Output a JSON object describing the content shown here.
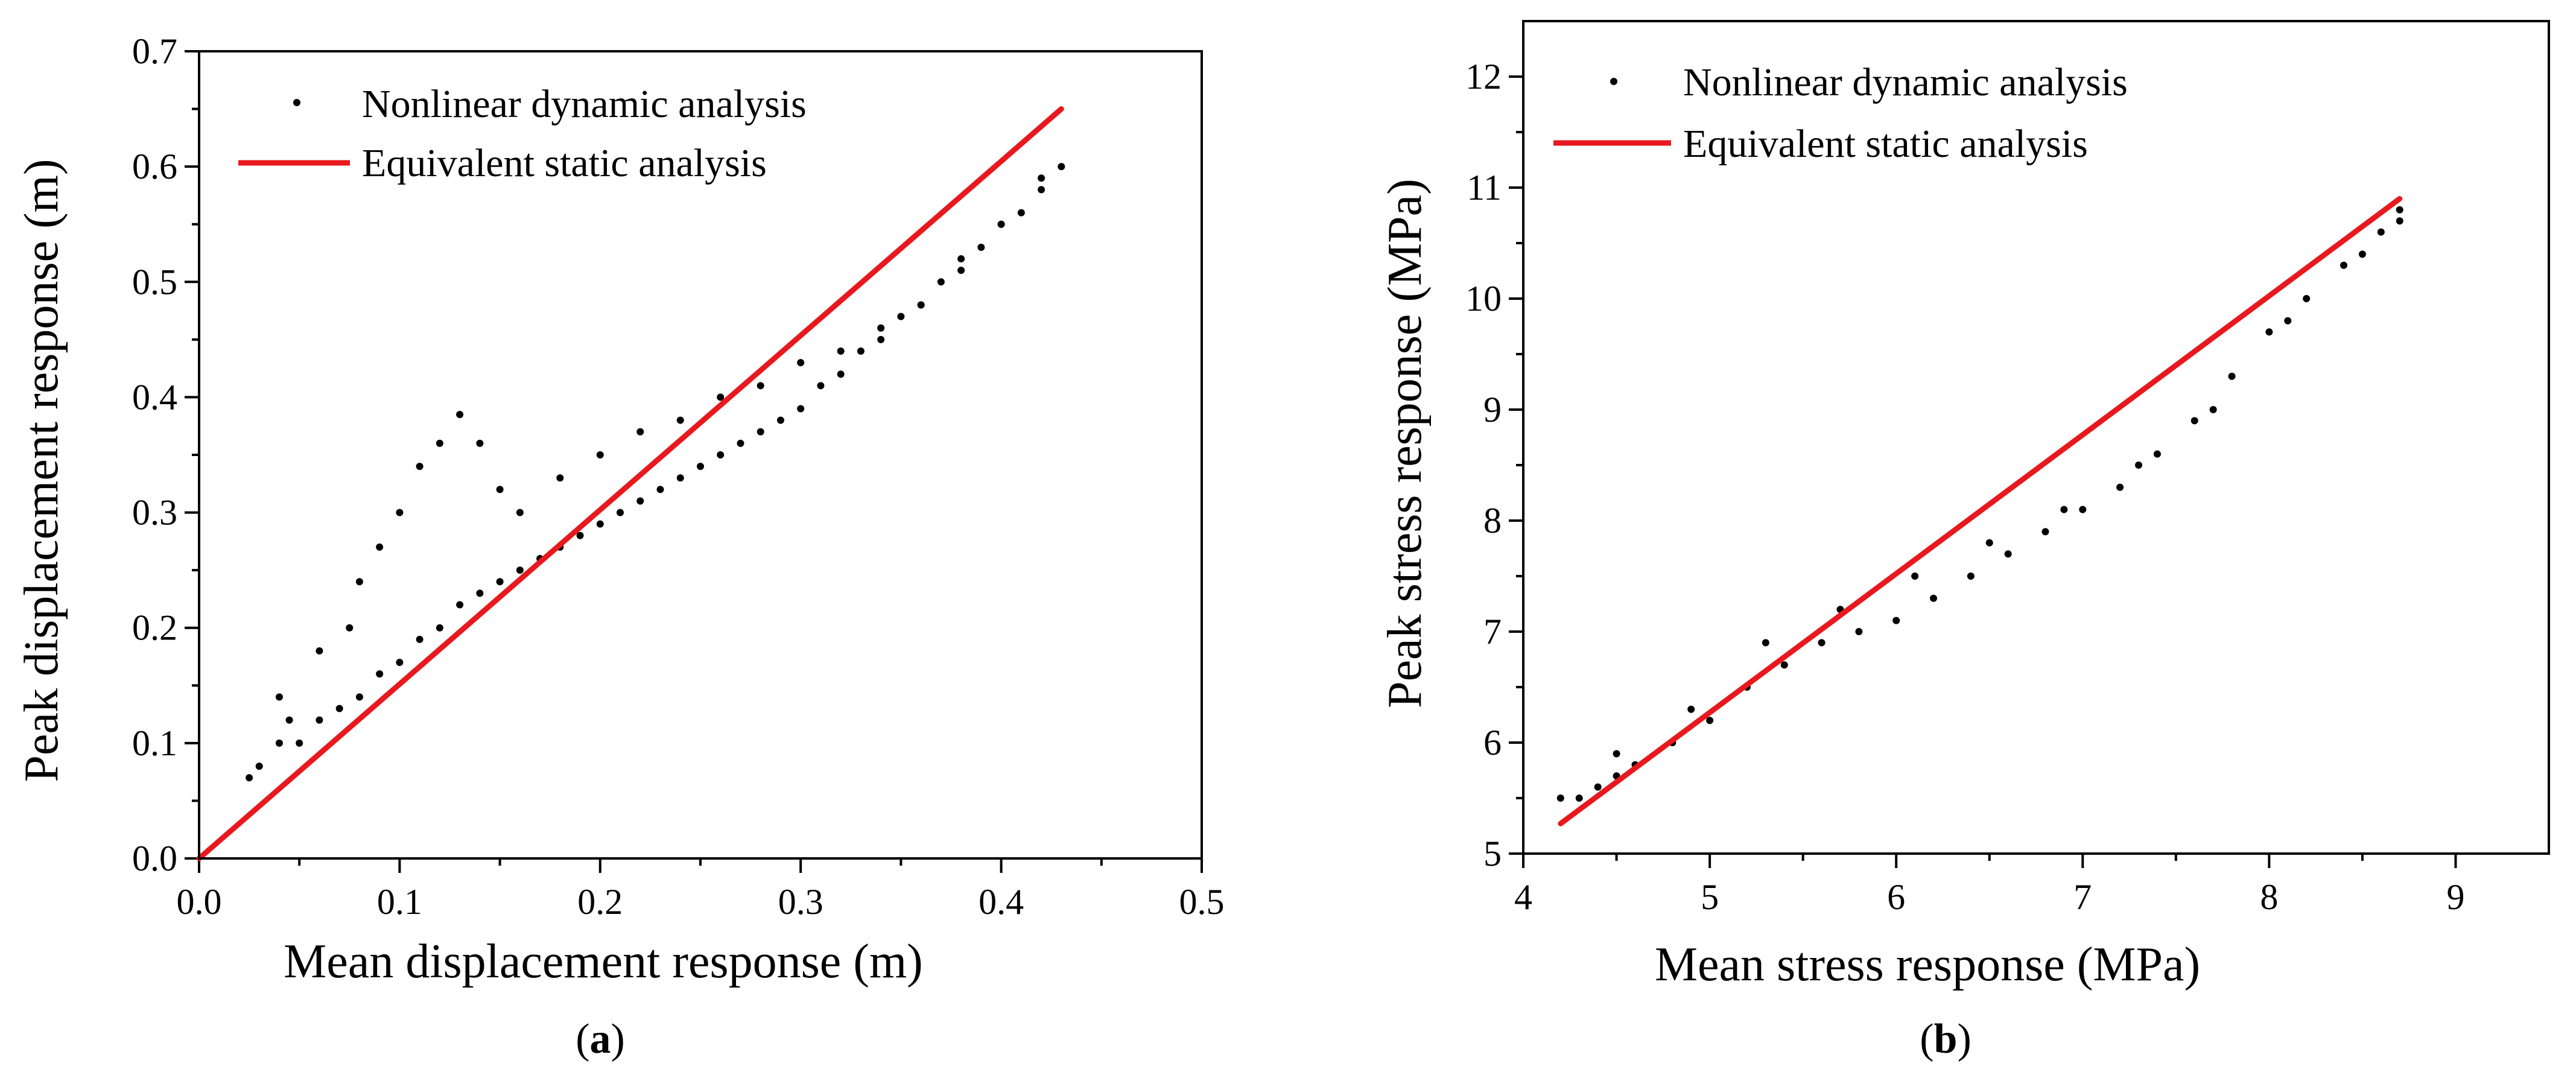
{
  "chart_data": [
    {
      "id": "a",
      "type": "scatter",
      "caption": "(a)",
      "caption_parts": {
        "open": "(",
        "letter": "a",
        "close": ")"
      },
      "xlabel": "Mean displacement response (m)",
      "ylabel": "Peak displacement response (m)",
      "xlim": [
        0.0,
        0.5
      ],
      "ylim": [
        0.0,
        0.7
      ],
      "x_ticks": [
        "0.0",
        "0.1",
        "0.2",
        "0.3",
        "0.4",
        "0.5"
      ],
      "y_ticks": [
        "0.0",
        "0.1",
        "0.2",
        "0.3",
        "0.4",
        "0.5",
        "0.6",
        "0.7"
      ],
      "legend_position": "top-left",
      "series": [
        {
          "name": "Nonlinear dynamic analysis",
          "kind": "points",
          "color": "#000000",
          "x": [
            0.025,
            0.03,
            0.04,
            0.045,
            0.05,
            0.06,
            0.07,
            0.075,
            0.08,
            0.09,
            0.1,
            0.11,
            0.12,
            0.13,
            0.14,
            0.15,
            0.16,
            0.17,
            0.18,
            0.19,
            0.2,
            0.21,
            0.22,
            0.23,
            0.24,
            0.25,
            0.26,
            0.27,
            0.28,
            0.29,
            0.3,
            0.31,
            0.32,
            0.33,
            0.34,
            0.35,
            0.36,
            0.37,
            0.38,
            0.39,
            0.4,
            0.41,
            0.42,
            0.43,
            0.04,
            0.06,
            0.08,
            0.09,
            0.1,
            0.11,
            0.12,
            0.13,
            0.14,
            0.15,
            0.16,
            0.18,
            0.2,
            0.22,
            0.24,
            0.26,
            0.28,
            0.3,
            0.32,
            0.34,
            0.36,
            0.38,
            0.4,
            0.42
          ],
          "y": [
            0.07,
            0.08,
            0.1,
            0.12,
            0.1,
            0.12,
            0.13,
            0.2,
            0.14,
            0.16,
            0.17,
            0.19,
            0.2,
            0.22,
            0.23,
            0.24,
            0.25,
            0.26,
            0.27,
            0.28,
            0.29,
            0.3,
            0.31,
            0.32,
            0.33,
            0.34,
            0.35,
            0.36,
            0.37,
            0.38,
            0.39,
            0.41,
            0.42,
            0.44,
            0.45,
            0.47,
            0.48,
            0.5,
            0.51,
            0.53,
            0.55,
            0.56,
            0.58,
            0.6,
            0.14,
            0.18,
            0.24,
            0.27,
            0.3,
            0.34,
            0.36,
            0.385,
            0.36,
            0.32,
            0.3,
            0.33,
            0.35,
            0.37,
            0.38,
            0.4,
            0.41,
            0.43,
            0.44,
            0.46,
            0.48,
            0.52,
            0.55,
            0.59
          ]
        },
        {
          "name": "Equivalent static analysis",
          "kind": "line",
          "color": "#e8191e",
          "x": [
            0.0,
            0.43
          ],
          "y": [
            0.0,
            0.65
          ]
        }
      ]
    },
    {
      "id": "b",
      "type": "scatter",
      "caption": "(b)",
      "caption_parts": {
        "open": "(",
        "letter": "b",
        "close": ")"
      },
      "xlabel": "Mean stress response (MPa)",
      "ylabel": "Peak stress response (MPa)",
      "xlim": [
        4,
        9.5
      ],
      "ylim": [
        5,
        12.5
      ],
      "x_ticks": [
        "4",
        "5",
        "6",
        "7",
        "8",
        "9"
      ],
      "y_ticks": [
        "5",
        "6",
        "7",
        "8",
        "9",
        "10",
        "11",
        "12"
      ],
      "legend_position": "top-left",
      "series": [
        {
          "name": "Nonlinear dynamic analysis",
          "kind": "points",
          "color": "#000000",
          "x": [
            4.2,
            4.3,
            4.4,
            4.5,
            4.6,
            4.8,
            5.0,
            5.2,
            5.4,
            5.6,
            5.8,
            6.0,
            6.2,
            6.4,
            6.6,
            6.8,
            7.0,
            7.2,
            7.4,
            7.6,
            7.8,
            8.0,
            8.2,
            8.4,
            8.6,
            8.7,
            4.5,
            4.9,
            5.3,
            5.7,
            6.1,
            6.5,
            6.9,
            7.3,
            7.7,
            8.1,
            8.5,
            8.7
          ],
          "y": [
            5.5,
            5.5,
            5.6,
            5.7,
            5.8,
            6.0,
            6.2,
            6.5,
            6.7,
            6.9,
            7.0,
            7.1,
            7.3,
            7.5,
            7.7,
            7.9,
            8.1,
            8.3,
            8.6,
            8.9,
            9.3,
            9.7,
            10.0,
            10.3,
            10.6,
            10.8,
            5.9,
            6.3,
            6.9,
            7.2,
            7.5,
            7.8,
            8.1,
            8.5,
            9.0,
            9.8,
            10.4,
            10.7
          ]
        },
        {
          "name": "Equivalent static analysis",
          "kind": "line",
          "color": "#e8191e",
          "x": [
            4.2,
            8.7
          ],
          "y": [
            5.27,
            10.9
          ]
        }
      ]
    }
  ]
}
